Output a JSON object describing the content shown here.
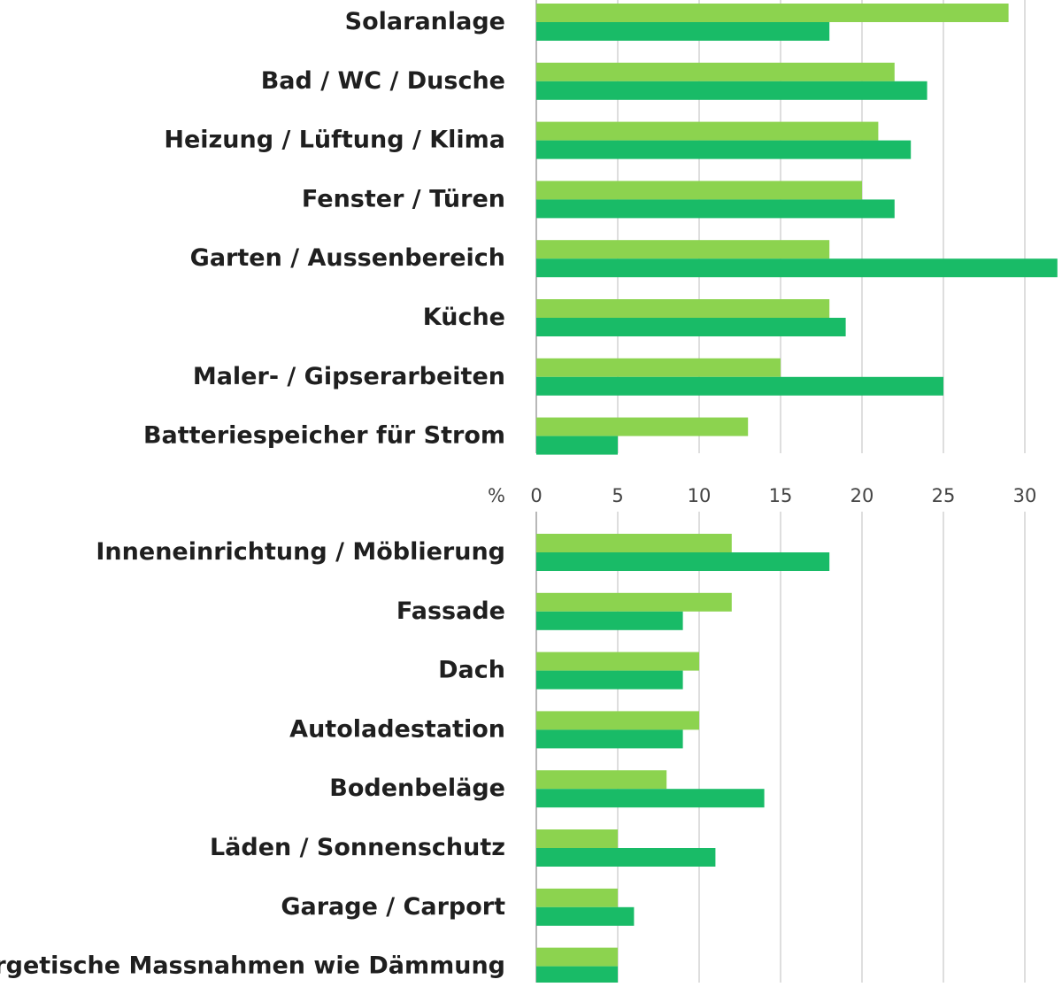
{
  "chart_data": {
    "type": "bar",
    "orientation": "horizontal",
    "unit": "%",
    "xlim": [
      0,
      32
    ],
    "xticks": [
      0,
      5,
      10,
      15,
      20,
      25,
      30
    ],
    "grid": true,
    "colors": {
      "series_1": "#8cd34f",
      "series_2": "#19bb67",
      "grid": "#c8c8c8",
      "axis": "#9a9a9a",
      "text": "#1f1f1f"
    },
    "categories": [
      "Solaranlage",
      "Bad / WC / Dusche",
      "Heizung / Lüftung / Klima",
      "Fenster / Türen",
      "Garten / Aussenbereich",
      "Küche",
      "Maler- / Gipserarbeiten",
      "Batteriespeicher für Strom",
      "Inneneinrichtung / Möblierung",
      "Fassade",
      "Dach",
      "Autoladestation",
      "Bodenbeläge",
      "Läden / Sonnenschutz",
      "Garage / Carport",
      "Energetische Massnahmen wie Dämmung"
    ],
    "series": [
      {
        "values": [
          29,
          22,
          21,
          20,
          18,
          18,
          15,
          13,
          12,
          12,
          10,
          10,
          8,
          5,
          5,
          5
        ]
      },
      {
        "values": [
          18,
          24,
          23,
          22,
          32,
          19,
          25,
          5,
          18,
          9,
          9,
          9,
          14,
          11,
          6,
          5
        ]
      }
    ]
  }
}
